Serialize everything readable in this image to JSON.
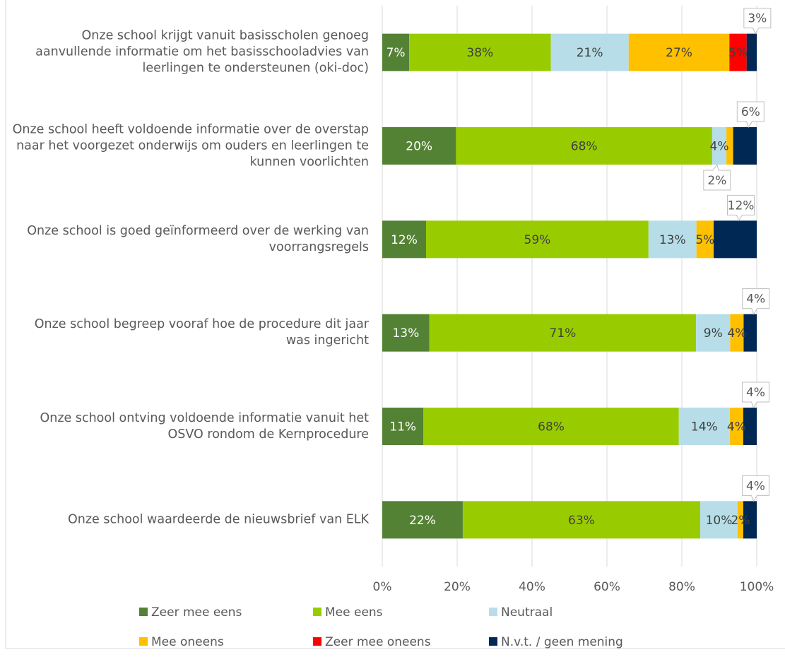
{
  "chart_data": {
    "type": "stacked_barh",
    "categories": [
      "Onze school krijgt vanuit basisscholen genoeg aanvullende informatie om het basisschooladvies van leerlingen te ondersteunen (oki-doc)",
      "Onze school heeft voldoende informatie over de overstap naar het voorgezet onderwijs om ouders en leerlingen te kunnen voorlichten",
      "Onze school is goed geïnformeerd over de werking van voorrangsregels",
      "Onze school begreep vooraf hoe de procedure dit jaar was ingericht",
      "Onze school ontving voldoende informatie vanuit het OSVO rondom de Kernprocedure",
      "Onze school waardeerde de nieuwsbrief van ELK"
    ],
    "series": [
      {
        "name": "Zeer mee eens",
        "color": "#548235",
        "values": [
          7.2,
          19.7,
          11.7,
          12.6,
          11.0,
          21.5
        ],
        "value_labels": [
          "7%",
          "20%",
          "12%",
          "13%",
          "11%",
          "22%"
        ]
      },
      {
        "name": "Mee eens",
        "color": "#99cc00",
        "values": [
          37.8,
          68.4,
          59.4,
          71.2,
          68.2,
          63.4
        ],
        "value_labels": [
          "38%",
          "68%",
          "59%",
          "71%",
          "68%",
          "63%"
        ]
      },
      {
        "name": "Neutraal",
        "color": "#b7dee8",
        "values": [
          20.8,
          3.8,
          12.8,
          9.1,
          13.6,
          10.0
        ],
        "value_labels": [
          "21%",
          "4%",
          "13%",
          "9%",
          "14%",
          "10%"
        ]
      },
      {
        "name": "Mee oneens",
        "color": "#ffc000",
        "values": [
          26.9,
          1.8,
          4.6,
          3.6,
          3.6,
          1.5
        ],
        "value_labels": [
          "27%",
          "2%",
          "5%",
          "4%",
          "4%",
          "2%"
        ]
      },
      {
        "name": "Zeer mee oneens",
        "color": "#ff0000",
        "values": [
          4.6,
          null,
          null,
          null,
          null,
          null
        ],
        "value_labels": [
          "5%",
          null,
          null,
          null,
          null,
          null
        ]
      },
      {
        "name": "N.v.t. / geen mening",
        "color": "#002855",
        "values": [
          2.7,
          6.3,
          11.5,
          3.5,
          3.6,
          3.6
        ],
        "value_labels": [
          "3%",
          "6%",
          "12%",
          "4%",
          "4%",
          "4%"
        ]
      }
    ],
    "xlim": [
      0,
      100
    ],
    "xticks": [
      {
        "value": 0,
        "label": "0%"
      },
      {
        "value": 20,
        "label": "20%"
      },
      {
        "value": 40,
        "label": "40%"
      },
      {
        "value": 60,
        "label": "60%"
      },
      {
        "value": 80,
        "label": "80%"
      },
      {
        "value": 100,
        "label": "100%"
      }
    ],
    "grid": true,
    "legend": "bottom"
  }
}
